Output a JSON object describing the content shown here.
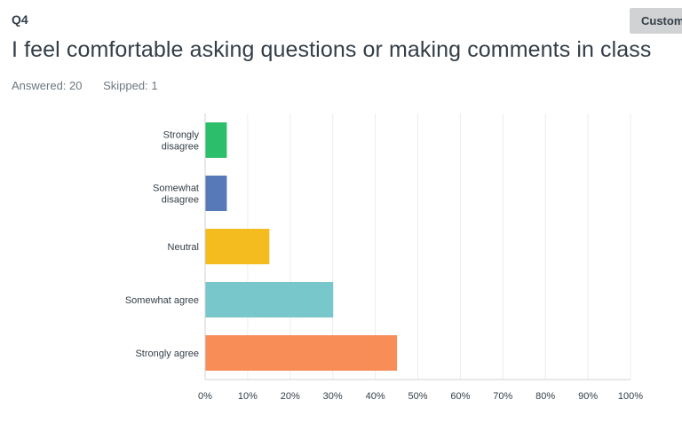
{
  "question": {
    "number": "Q4",
    "title": "I feel comfortable asking questions or making comments in class",
    "answered": "Answered: 20",
    "skipped": "Skipped: 1"
  },
  "toolbar": {
    "customize_label": "Custom"
  },
  "chart_data": {
    "type": "bar",
    "orientation": "horizontal",
    "categories": [
      [
        "Strongly",
        "disagree"
      ],
      [
        "Somewhat",
        "disagree"
      ],
      [
        "Neutral"
      ],
      [
        "Somewhat agree"
      ],
      [
        "Strongly agree"
      ]
    ],
    "values": [
      5,
      5,
      15,
      30,
      45
    ],
    "colors": [
      "#2dbe6c",
      "#5779b8",
      "#f4bc1f",
      "#78c8cb",
      "#f98d58"
    ],
    "xlim": [
      0,
      100
    ],
    "x_ticks": [
      "0%",
      "10%",
      "20%",
      "30%",
      "40%",
      "50%",
      "60%",
      "70%",
      "80%",
      "90%",
      "100%"
    ],
    "grid": true
  }
}
